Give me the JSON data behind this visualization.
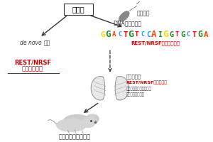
{
  "bg_color": "#ffffff",
  "title_box_text": "父加齢",
  "left_label_italic": "de novo",
  "left_label_normal": "変異",
  "sperm_label1": "「精子」",
  "sperm_label2": "DNA低メチル化",
  "motif_label": "REST/NRSF結合モチーフ",
  "rest_left_line1": "REST/NRSF",
  "rest_left_line2": "共通分子基盤",
  "fetal_brain_label": "「胎児脳」",
  "right_line1": "REST/NRSF標的遠伝子",
  "right_line2": "胎生後期神経関連遠伝子",
  "right_line3": "自閉症関連遠伝子",
  "bottom_label": "発達障害様行動異常",
  "dna_sequence": [
    {
      "char": "G",
      "color": "#FFD700",
      "size": 1.3
    },
    {
      "char": "G",
      "color": "#228B22",
      "size": 1.5
    },
    {
      "char": "A",
      "color": "#FF4500",
      "size": 1.1
    },
    {
      "char": "C",
      "color": "#1E90FF",
      "size": 1.0
    },
    {
      "char": "T",
      "color": "#FF0000",
      "size": 1.3
    },
    {
      "char": "G",
      "color": "#228B22",
      "size": 1.6
    },
    {
      "char": "T",
      "color": "#FF0000",
      "size": 1.1
    },
    {
      "char": "C",
      "color": "#1E90FF",
      "size": 1.0
    },
    {
      "char": "C",
      "color": "#1E90FF",
      "size": 1.2
    },
    {
      "char": "A",
      "color": "#FF4500",
      "size": 1.5
    },
    {
      "char": "I",
      "color": "#228B22",
      "size": 1.2
    },
    {
      "char": "G",
      "color": "#FFD700",
      "size": 1.6
    },
    {
      "char": "G",
      "color": "#228B22",
      "size": 1.2
    },
    {
      "char": "T",
      "color": "#FF0000",
      "size": 1.0
    },
    {
      "char": "G",
      "color": "#228B22",
      "size": 1.3
    },
    {
      "char": "C",
      "color": "#1E90FF",
      "size": 1.1
    },
    {
      "char": "T",
      "color": "#FF0000",
      "size": 1.2
    },
    {
      "char": "G",
      "color": "#228B22",
      "size": 1.4
    },
    {
      "char": "A",
      "color": "#FF4500",
      "size": 1.3
    }
  ]
}
